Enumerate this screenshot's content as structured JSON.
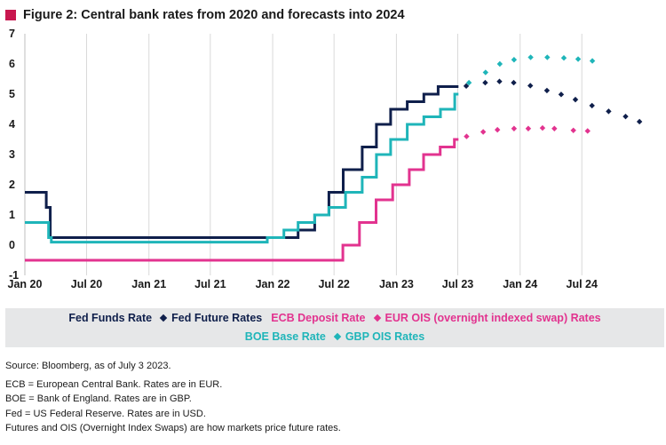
{
  "figure": {
    "title": "Figure 2:  Central bank rates from 2020 and forecasts into 2024",
    "accent_color": "#c8174f"
  },
  "chart_data": {
    "type": "line",
    "title": "Figure 2:  Central bank rates from 2020 and forecasts into 2024",
    "xlabel": "",
    "ylabel": "",
    "ylim": [
      -1,
      7
    ],
    "xlim": [
      "2020-01-01",
      "2025-03-01"
    ],
    "y_ticks": [
      -1,
      0,
      1,
      2,
      3,
      4,
      5,
      6,
      7
    ],
    "x_ticks": [
      {
        "date": "2020-01-01",
        "label": "Jan 20"
      },
      {
        "date": "2020-07-01",
        "label": "Jul 20"
      },
      {
        "date": "2021-01-01",
        "label": "Jan 21"
      },
      {
        "date": "2021-07-01",
        "label": "Jul 21"
      },
      {
        "date": "2022-01-01",
        "label": "Jan 22"
      },
      {
        "date": "2022-07-01",
        "label": "Jul 22"
      },
      {
        "date": "2023-01-01",
        "label": "Jan 23"
      },
      {
        "date": "2023-07-01",
        "label": "Jul 23"
      },
      {
        "date": "2024-01-01",
        "label": "Jan 24"
      },
      {
        "date": "2024-07-01",
        "label": "Jul 24"
      }
    ],
    "grid": "vertical",
    "legend_placement": "bottom",
    "series": [
      {
        "name": "Fed Funds Rate",
        "style": "step",
        "color": "#0f1f4b",
        "points": [
          [
            "2020-01-01",
            1.75
          ],
          [
            "2020-03-04",
            1.25
          ],
          [
            "2020-03-16",
            0.25
          ],
          [
            "2022-03-17",
            0.5
          ],
          [
            "2022-05-05",
            1.0
          ],
          [
            "2022-06-16",
            1.75
          ],
          [
            "2022-07-28",
            2.5
          ],
          [
            "2022-09-22",
            3.25
          ],
          [
            "2022-11-03",
            4.0
          ],
          [
            "2022-12-15",
            4.5
          ],
          [
            "2023-02-02",
            4.75
          ],
          [
            "2023-03-23",
            5.0
          ],
          [
            "2023-05-04",
            5.25
          ],
          [
            "2023-07-03",
            5.25
          ]
        ]
      },
      {
        "name": "BOE Base Rate",
        "style": "step",
        "color": "#1fb5b9",
        "points": [
          [
            "2020-01-01",
            0.75
          ],
          [
            "2020-03-11",
            0.25
          ],
          [
            "2020-03-19",
            0.1
          ],
          [
            "2021-12-16",
            0.25
          ],
          [
            "2022-02-03",
            0.5
          ],
          [
            "2022-03-17",
            0.75
          ],
          [
            "2022-05-05",
            1.0
          ],
          [
            "2022-06-16",
            1.25
          ],
          [
            "2022-08-04",
            1.75
          ],
          [
            "2022-09-22",
            2.25
          ],
          [
            "2022-11-03",
            3.0
          ],
          [
            "2022-12-15",
            3.5
          ],
          [
            "2023-02-02",
            4.0
          ],
          [
            "2023-03-23",
            4.25
          ],
          [
            "2023-05-11",
            4.5
          ],
          [
            "2023-06-22",
            5.0
          ],
          [
            "2023-07-03",
            5.0
          ]
        ]
      },
      {
        "name": "ECB Deposit Rate",
        "style": "step",
        "color": "#e2338f",
        "points": [
          [
            "2020-01-01",
            -0.5
          ],
          [
            "2022-07-27",
            0.0
          ],
          [
            "2022-09-14",
            0.75
          ],
          [
            "2022-11-02",
            1.5
          ],
          [
            "2022-12-21",
            2.0
          ],
          [
            "2023-02-08",
            2.5
          ],
          [
            "2023-03-22",
            3.0
          ],
          [
            "2023-05-10",
            3.25
          ],
          [
            "2023-06-21",
            3.5
          ],
          [
            "2023-07-03",
            3.5
          ]
        ]
      },
      {
        "name": "Fed Future Rates",
        "style": "markers",
        "color": "#0f1f4b",
        "points": [
          [
            "2023-07-26",
            5.27
          ],
          [
            "2023-09-20",
            5.38
          ],
          [
            "2023-11-01",
            5.42
          ],
          [
            "2023-12-13",
            5.38
          ],
          [
            "2024-01-31",
            5.28
          ],
          [
            "2024-03-20",
            5.12
          ],
          [
            "2024-05-01",
            4.99
          ],
          [
            "2024-06-12",
            4.82
          ],
          [
            "2024-07-31",
            4.62
          ],
          [
            "2024-09-18",
            4.43
          ],
          [
            "2024-11-07",
            4.26
          ],
          [
            "2024-12-18",
            4.09
          ]
        ]
      },
      {
        "name": "GBP OIS Rates",
        "style": "markers",
        "color": "#1fb5b9",
        "points": [
          [
            "2023-08-03",
            5.38
          ],
          [
            "2023-09-21",
            5.72
          ],
          [
            "2023-11-02",
            6.0
          ],
          [
            "2023-12-14",
            6.14
          ],
          [
            "2024-02-01",
            6.22
          ],
          [
            "2024-03-21",
            6.22
          ],
          [
            "2024-05-09",
            6.2
          ],
          [
            "2024-06-20",
            6.16
          ],
          [
            "2024-08-01",
            6.1
          ]
        ]
      },
      {
        "name": "EUR OIS (overnight indexed swap) Rates",
        "style": "markers",
        "color": "#e2338f",
        "points": [
          [
            "2023-07-27",
            3.6
          ],
          [
            "2023-09-14",
            3.75
          ],
          [
            "2023-10-26",
            3.82
          ],
          [
            "2023-12-14",
            3.86
          ],
          [
            "2024-01-25",
            3.86
          ],
          [
            "2024-03-07",
            3.88
          ],
          [
            "2024-04-11",
            3.86
          ],
          [
            "2024-06-06",
            3.8
          ],
          [
            "2024-07-18",
            3.78
          ]
        ]
      }
    ]
  },
  "legend": {
    "row1": [
      {
        "label": "Fed Funds Rate",
        "marker": "none",
        "color": "#0f1f4b"
      },
      {
        "label": "Fed Future Rates",
        "marker": "diamond",
        "color": "#0f1f4b"
      },
      {
        "label": "ECB Deposit Rate",
        "marker": "none",
        "color": "#e2338f"
      },
      {
        "label": "EUR OIS (overnight indexed swap) Rates",
        "marker": "diamond",
        "color": "#e2338f"
      }
    ],
    "row2": [
      {
        "label": "BOE Base Rate",
        "marker": "none",
        "color": "#1fb5b9"
      },
      {
        "label": "GBP OIS Rates",
        "marker": "diamond",
        "color": "#1fb5b9"
      }
    ]
  },
  "notes": {
    "source": "Source: Bloomberg, as of July 3 2023.",
    "lines": [
      "ECB = European Central Bank.  Rates are in EUR.",
      "BOE = Bank of England.  Rates are in GBP.",
      "Fed = US Federal Reserve.  Rates are in USD.",
      "Futures and OIS (Overnight Index Swaps) are how markets price future rates."
    ]
  }
}
